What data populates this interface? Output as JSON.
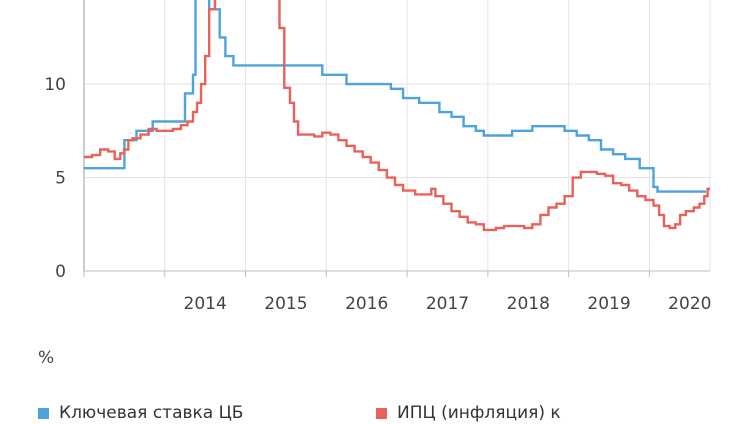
{
  "chart_data": {
    "type": "line",
    "unit_label": "%",
    "x_tick_labels": [
      "2014",
      "2015",
      "2016",
      "2017",
      "2018",
      "2019",
      "2020"
    ],
    "x_range": [
      2013.0,
      2020.75
    ],
    "y_tick_labels": [
      "0",
      "5",
      "10"
    ],
    "y_ticks": [
      0,
      5,
      10
    ],
    "ylim": [
      0,
      14.5
    ],
    "grid": true,
    "legend_position": "bottom",
    "colors": {
      "key_rate": "#4da3dc",
      "cpi": "#e8625a",
      "grid": "#e3e3e3",
      "axis": "#bdbdbd",
      "tick_text": "#444444"
    },
    "series": [
      {
        "id": "key_rate",
        "name": "Ключевая ставка ЦБ",
        "step": true,
        "points": [
          [
            2013.0,
            5.5
          ],
          [
            2013.5,
            5.5
          ],
          [
            2013.5,
            7.0
          ],
          [
            2013.65,
            7.0
          ],
          [
            2013.65,
            7.5
          ],
          [
            2013.85,
            7.5
          ],
          [
            2013.85,
            8.0
          ],
          [
            2014.25,
            8.0
          ],
          [
            2014.25,
            9.5
          ],
          [
            2014.35,
            9.5
          ],
          [
            2014.35,
            10.5
          ],
          [
            2014.38,
            10.5
          ],
          [
            2014.38,
            17.0
          ],
          [
            2014.5,
            17.0
          ],
          [
            2014.5,
            15.0
          ],
          [
            2014.55,
            15.0
          ],
          [
            2014.55,
            14.0
          ],
          [
            2014.68,
            14.0
          ],
          [
            2014.68,
            12.5
          ],
          [
            2014.75,
            12.5
          ],
          [
            2014.75,
            11.5
          ],
          [
            2014.85,
            11.5
          ],
          [
            2014.85,
            11.0
          ],
          [
            2015.95,
            11.0
          ],
          [
            2015.95,
            10.5
          ],
          [
            2016.25,
            10.5
          ],
          [
            2016.25,
            10.0
          ],
          [
            2016.8,
            10.0
          ],
          [
            2016.8,
            9.75
          ],
          [
            2016.95,
            9.75
          ],
          [
            2016.95,
            9.25
          ],
          [
            2017.15,
            9.25
          ],
          [
            2017.15,
            9.0
          ],
          [
            2017.4,
            9.0
          ],
          [
            2017.4,
            8.5
          ],
          [
            2017.55,
            8.5
          ],
          [
            2017.55,
            8.25
          ],
          [
            2017.7,
            8.25
          ],
          [
            2017.7,
            7.75
          ],
          [
            2017.85,
            7.75
          ],
          [
            2017.85,
            7.5
          ],
          [
            2017.95,
            7.5
          ],
          [
            2017.95,
            7.25
          ],
          [
            2018.3,
            7.25
          ],
          [
            2018.3,
            7.5
          ],
          [
            2018.55,
            7.5
          ],
          [
            2018.55,
            7.75
          ],
          [
            2018.95,
            7.75
          ],
          [
            2018.95,
            7.5
          ],
          [
            2019.1,
            7.5
          ],
          [
            2019.1,
            7.25
          ],
          [
            2019.25,
            7.25
          ],
          [
            2019.25,
            7.0
          ],
          [
            2019.4,
            7.0
          ],
          [
            2019.4,
            6.5
          ],
          [
            2019.55,
            6.5
          ],
          [
            2019.55,
            6.25
          ],
          [
            2019.7,
            6.25
          ],
          [
            2019.7,
            6.0
          ],
          [
            2019.88,
            6.0
          ],
          [
            2019.88,
            5.5
          ],
          [
            2020.05,
            5.5
          ],
          [
            2020.05,
            4.5
          ],
          [
            2020.1,
            4.5
          ],
          [
            2020.1,
            4.25
          ],
          [
            2020.7,
            4.25
          ]
        ]
      },
      {
        "id": "cpi",
        "name": "ИПЦ (инфляция) к",
        "step": true,
        "points": [
          [
            2013.0,
            6.1
          ],
          [
            2013.1,
            6.2
          ],
          [
            2013.2,
            6.5
          ],
          [
            2013.3,
            6.4
          ],
          [
            2013.38,
            6.0
          ],
          [
            2013.45,
            6.3
          ],
          [
            2013.5,
            6.5
          ],
          [
            2013.55,
            7.0
          ],
          [
            2013.6,
            7.1
          ],
          [
            2013.7,
            7.3
          ],
          [
            2013.8,
            7.6
          ],
          [
            2013.9,
            7.5
          ],
          [
            2014.0,
            7.5
          ],
          [
            2014.1,
            7.6
          ],
          [
            2014.2,
            7.8
          ],
          [
            2014.28,
            8.0
          ],
          [
            2014.35,
            8.5
          ],
          [
            2014.4,
            9.0
          ],
          [
            2014.45,
            10.0
          ],
          [
            2014.5,
            11.5
          ],
          [
            2014.55,
            14.0
          ],
          [
            2014.62,
            17.0
          ],
          [
            2015.35,
            17.0
          ],
          [
            2015.38,
            16.0
          ],
          [
            2015.42,
            13.0
          ],
          [
            2015.48,
            9.8
          ],
          [
            2015.55,
            9.0
          ],
          [
            2015.6,
            8.0
          ],
          [
            2015.65,
            7.3
          ],
          [
            2015.85,
            7.2
          ],
          [
            2015.95,
            7.4
          ],
          [
            2016.05,
            7.3
          ],
          [
            2016.15,
            7.0
          ],
          [
            2016.25,
            6.7
          ],
          [
            2016.35,
            6.4
          ],
          [
            2016.45,
            6.1
          ],
          [
            2016.55,
            5.8
          ],
          [
            2016.65,
            5.4
          ],
          [
            2016.75,
            5.0
          ],
          [
            2016.85,
            4.6
          ],
          [
            2016.95,
            4.3
          ],
          [
            2017.1,
            4.1
          ],
          [
            2017.2,
            4.1
          ],
          [
            2017.3,
            4.4
          ],
          [
            2017.35,
            4.0
          ],
          [
            2017.45,
            3.6
          ],
          [
            2017.55,
            3.2
          ],
          [
            2017.65,
            2.9
          ],
          [
            2017.75,
            2.6
          ],
          [
            2017.85,
            2.5
          ],
          [
            2017.95,
            2.2
          ],
          [
            2018.1,
            2.3
          ],
          [
            2018.2,
            2.4
          ],
          [
            2018.35,
            2.4
          ],
          [
            2018.45,
            2.3
          ],
          [
            2018.55,
            2.5
          ],
          [
            2018.65,
            3.0
          ],
          [
            2018.75,
            3.4
          ],
          [
            2018.85,
            3.6
          ],
          [
            2018.95,
            4.0
          ],
          [
            2019.05,
            5.0
          ],
          [
            2019.15,
            5.3
          ],
          [
            2019.25,
            5.3
          ],
          [
            2019.35,
            5.2
          ],
          [
            2019.45,
            5.1
          ],
          [
            2019.55,
            4.7
          ],
          [
            2019.65,
            4.6
          ],
          [
            2019.75,
            4.3
          ],
          [
            2019.85,
            4.0
          ],
          [
            2019.95,
            3.8
          ],
          [
            2020.05,
            3.5
          ],
          [
            2020.12,
            3.0
          ],
          [
            2020.18,
            2.4
          ],
          [
            2020.25,
            2.3
          ],
          [
            2020.32,
            2.5
          ],
          [
            2020.38,
            3.0
          ],
          [
            2020.45,
            3.2
          ],
          [
            2020.55,
            3.4
          ],
          [
            2020.62,
            3.6
          ],
          [
            2020.68,
            4.0
          ],
          [
            2020.72,
            4.4
          ],
          [
            2020.75,
            4.4
          ]
        ]
      }
    ]
  }
}
